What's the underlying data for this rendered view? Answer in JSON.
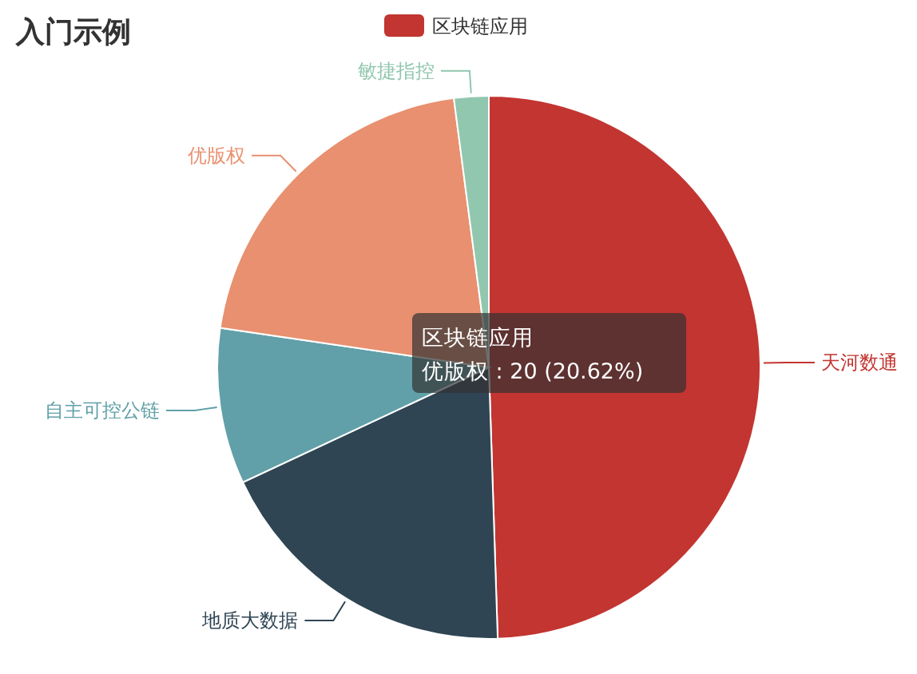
{
  "chart_data": {
    "type": "pie",
    "title": "入门示例",
    "categories": [
      "天河数通",
      "地质大数据",
      "自主可控公链",
      "优版权",
      "敏捷指控"
    ],
    "series": [
      {
        "name": "区块链应用",
        "values": [
          49.48,
          18.56,
          9.28,
          20.62,
          2.06
        ],
        "colors": [
          "#c23531",
          "#2f4554",
          "#61a0a8",
          "#e8906f",
          "#91c7ae"
        ]
      }
    ],
    "legend": "top",
    "annotations": [
      "区块链应用",
      "优版权 : 20 (20.62%)"
    ]
  }
}
